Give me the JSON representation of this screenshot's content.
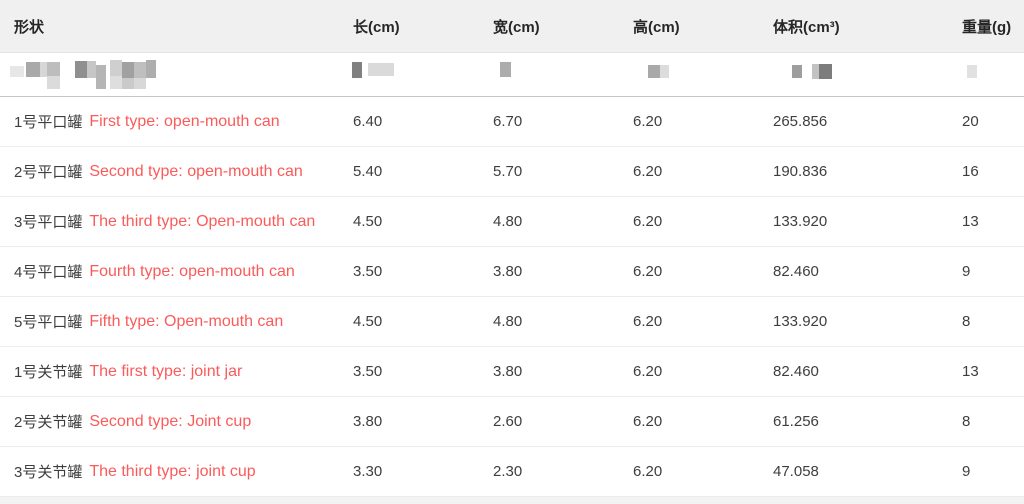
{
  "colors": {
    "header_bg": "#f0f0f0",
    "header_text": "#262626",
    "body_text": "#3e3e3e",
    "accent_red": "#fb5a5a",
    "row_border": "#ececec",
    "censored_border": "#c6c6c6",
    "bottom_strip_bg": "#f3f3f3"
  },
  "table": {
    "columns": [
      "形状",
      "长(cm)",
      "宽(cm)",
      "高(cm)",
      "体积(cm³)",
      "重量(g)"
    ],
    "rows": [
      {
        "shape_cn": "1号平口罐",
        "shape_en": "First type: open-mouth can",
        "length": "6.40",
        "width": "6.70",
        "height": "6.20",
        "volume": "265.856",
        "weight": "20"
      },
      {
        "shape_cn": "2号平口罐",
        "shape_en": "Second type: open-mouth can",
        "length": "5.40",
        "width": "5.70",
        "height": "6.20",
        "volume": "190.836",
        "weight": "16"
      },
      {
        "shape_cn": "3号平口罐",
        "shape_en": "The third type: Open-mouth can",
        "length": "4.50",
        "width": "4.80",
        "height": "6.20",
        "volume": "133.920",
        "weight": "13"
      },
      {
        "shape_cn": "4号平口罐",
        "shape_en": "Fourth type: open-mouth can",
        "length": "3.50",
        "width": "3.80",
        "height": "6.20",
        "volume": "82.460",
        "weight": "9"
      },
      {
        "shape_cn": "5号平口罐",
        "shape_en": "Fifth type: Open-mouth can",
        "length": "4.50",
        "width": "4.80",
        "height": "6.20",
        "volume": "133.920",
        "weight": "8"
      },
      {
        "shape_cn": "1号关节罐",
        "shape_en": "The first type: joint jar",
        "length": "3.50",
        "width": "3.80",
        "height": "6.20",
        "volume": "82.460",
        "weight": "13"
      },
      {
        "shape_cn": "2号关节罐",
        "shape_en": "Second type: Joint cup",
        "length": "3.80",
        "width": "2.60",
        "height": "6.20",
        "volume": "61.256",
        "weight": "8"
      },
      {
        "shape_cn": "3号关节罐",
        "shape_en": "The third type: joint cup",
        "length": "3.30",
        "width": "2.30",
        "height": "6.20",
        "volume": "47.058",
        "weight": "9"
      }
    ]
  },
  "censored_row": {
    "description": "pixelated redacted row",
    "blocks": [
      [
        10,
        13,
        14,
        11,
        "#e7e7e7"
      ],
      [
        26,
        9,
        14,
        15,
        "#a9a9a9"
      ],
      [
        40,
        9,
        8,
        15,
        "#d6d6d6"
      ],
      [
        47,
        9,
        13,
        14,
        "#bdbdbd"
      ],
      [
        47,
        23,
        13,
        13,
        "#dbdbdb"
      ],
      [
        75,
        8,
        12,
        17,
        "#8f8f8f"
      ],
      [
        87,
        8,
        9,
        17,
        "#c6c6c6"
      ],
      [
        96,
        12,
        10,
        24,
        "#b5b5b5"
      ],
      [
        110,
        7,
        12,
        16,
        "#cfcfcf"
      ],
      [
        110,
        23,
        12,
        13,
        "#dedede"
      ],
      [
        122,
        9,
        12,
        16,
        "#a1a1a1"
      ],
      [
        122,
        25,
        12,
        11,
        "#cacaca"
      ],
      [
        134,
        9,
        12,
        16,
        "#bfbfbf"
      ],
      [
        134,
        25,
        12,
        11,
        "#d8d8d8"
      ],
      [
        146,
        7,
        10,
        18,
        "#aeaeae"
      ],
      [
        352,
        9,
        10,
        16,
        "#808080"
      ],
      [
        368,
        10,
        26,
        13,
        "#dadada"
      ],
      [
        500,
        9,
        11,
        15,
        "#acacac"
      ],
      [
        648,
        12,
        12,
        13,
        "#a9a9a9"
      ],
      [
        660,
        12,
        9,
        13,
        "#dcdcdc"
      ],
      [
        792,
        12,
        10,
        13,
        "#9e9e9e"
      ],
      [
        812,
        11,
        7,
        15,
        "#c2c2c2"
      ],
      [
        819,
        11,
        13,
        15,
        "#7c7c7c"
      ],
      [
        967,
        12,
        10,
        13,
        "#e1e1e1"
      ]
    ]
  }
}
